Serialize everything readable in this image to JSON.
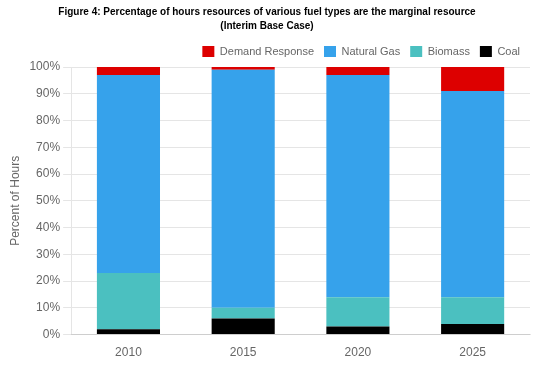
{
  "chart_data": {
    "type": "bar",
    "stacked": true,
    "title": "Figure 4: Percentage of hours resources of various fuel types are the marginal resource",
    "subtitle": "(Interim Base Case)",
    "ylabel": "Percent of Hours",
    "categories": [
      "2010",
      "2015",
      "2020",
      "2025"
    ],
    "series": [
      {
        "name": "Coal",
        "color": "#000000",
        "values": [
          2,
          6,
          3,
          4
        ]
      },
      {
        "name": "Biomass",
        "color": "#4bc0c0",
        "values": [
          21,
          4,
          11,
          10
        ]
      },
      {
        "name": "Natural Gas",
        "color": "#36a2eb",
        "values": [
          74,
          89,
          83,
          77
        ]
      },
      {
        "name": "Demand Response",
        "color": "#dd0000",
        "values": [
          3,
          1,
          3,
          9
        ]
      }
    ],
    "ylim": [
      0,
      100
    ],
    "yticks": [
      {
        "value": 0,
        "label": "0%"
      },
      {
        "value": 10,
        "label": "10%"
      },
      {
        "value": 20,
        "label": "20%"
      },
      {
        "value": 30,
        "label": "30%"
      },
      {
        "value": 40,
        "label": "40%"
      },
      {
        "value": 50,
        "label": "50%"
      },
      {
        "value": 60,
        "label": "60%"
      },
      {
        "value": 70,
        "label": "70%"
      },
      {
        "value": 80,
        "label": "80%"
      },
      {
        "value": 90,
        "label": "90%"
      },
      {
        "value": 100,
        "label": "100%"
      }
    ],
    "grid": true,
    "legend": "upper right"
  }
}
